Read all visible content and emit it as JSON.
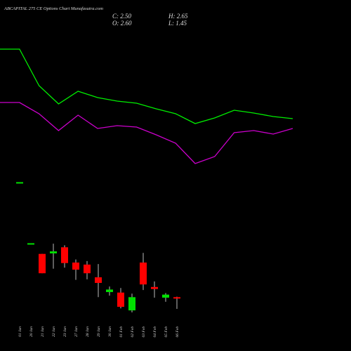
{
  "chart_data": [
    {
      "type": "candlestick",
      "title": "ABCAPITAL 275 CE Options Chart Munafasutra.com",
      "close_label": "C: 2.50",
      "high_label": "H: 2.65",
      "open_label": "O: 2.60",
      "low_label": "L: 1.45",
      "categories": [
        "01 Jan",
        "20 Jan",
        "21 Jan",
        "22 Jan",
        "23 Jan",
        "27 Jan",
        "28 Jan",
        "29 Jan",
        "30 Jan",
        "01 Feb",
        "02 Feb",
        "03 Feb",
        "04 Feb",
        "05 Feb",
        "06 Feb"
      ],
      "open": [
        13.8,
        7.8,
        6.85,
        6.9,
        7.5,
        6.0,
        5.8,
        4.55,
        3.1,
        3.05,
        1.3,
        6.0,
        3.6,
        2.55,
        2.6
      ],
      "high": [
        13.9,
        7.9,
        6.85,
        7.85,
        7.7,
        6.3,
        6.15,
        5.85,
        3.65,
        3.5,
        2.95,
        6.95,
        4.15,
        3.0,
        2.65
      ],
      "low": [
        13.8,
        7.8,
        4.95,
        5.4,
        5.5,
        4.3,
        4.35,
        2.6,
        2.75,
        1.5,
        1.1,
        3.3,
        2.55,
        2.15,
        1.45
      ],
      "close": [
        13.9,
        7.9,
        4.95,
        7.1,
        5.95,
        5.3,
        4.95,
        4.0,
        3.35,
        1.65,
        2.6,
        3.85,
        3.4,
        2.85,
        2.5
      ],
      "up_color": "#00e000",
      "down_color": "#ff0000",
      "ylim": [
        0,
        30
      ]
    },
    {
      "type": "line",
      "x": [
        0,
        1,
        2,
        3,
        4,
        5,
        6,
        7,
        8,
        9,
        10,
        11,
        12,
        13,
        14,
        15
      ],
      "xlim": [
        0,
        15
      ],
      "ylim": [
        0,
        250
      ],
      "series": [
        {
          "color": "#00ee00",
          "values": [
            180,
            180,
            128,
            102,
            120,
            111,
            106,
            103,
            95,
            88,
            74,
            82,
            93,
            89,
            84,
            81
          ]
        },
        {
          "color": "#cc00cc",
          "values": [
            104,
            104,
            88,
            64,
            86,
            67,
            71,
            69,
            58,
            46,
            17,
            27,
            61,
            64,
            59,
            67
          ]
        }
      ]
    }
  ]
}
